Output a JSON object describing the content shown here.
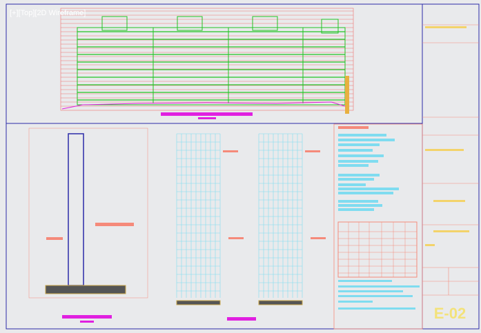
{
  "viewport_label": "[+][Top][2D Wireframe]",
  "sheet_number": "E-02"
}
